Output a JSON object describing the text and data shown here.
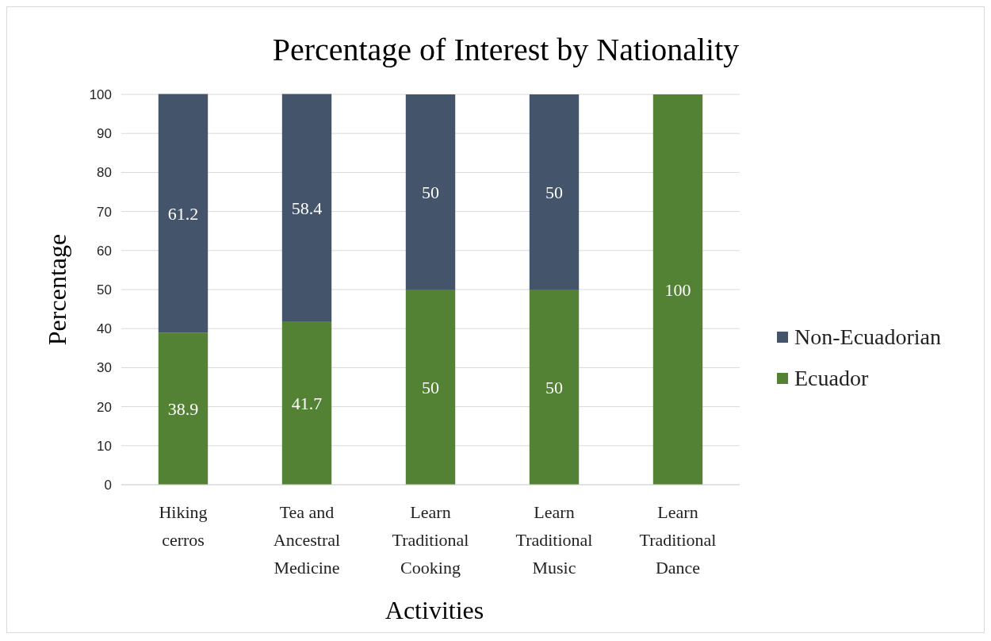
{
  "chart_data": {
    "type": "bar",
    "title": "Percentage of Interest by Nationality",
    "xlabel": "Activities",
    "ylabel": "Percentage",
    "categories": [
      "Hiking cerros",
      "Tea and Ancestral Medicine",
      "Learn Traditional Cooking",
      "Learn Traditional Music",
      "Learn Traditional Dance"
    ],
    "stacked": true,
    "series": [
      {
        "name": "Ecuador",
        "color": "#548235",
        "values": [
          38.9,
          41.7,
          50,
          50,
          100
        ],
        "value_labels": [
          "38.9",
          "41.7",
          "50",
          "50",
          "100"
        ]
      },
      {
        "name": "Non-Ecuadorian",
        "color": "#44546a",
        "values": [
          61.2,
          58.4,
          50,
          50,
          0
        ],
        "value_labels": [
          "61.2",
          "58.4",
          "50",
          "50",
          null
        ]
      }
    ],
    "ylim": [
      0,
      100
    ],
    "yticks": [
      0,
      10,
      20,
      30,
      40,
      50,
      60,
      70,
      80,
      90,
      100
    ],
    "grid": "y",
    "legend": "right"
  }
}
